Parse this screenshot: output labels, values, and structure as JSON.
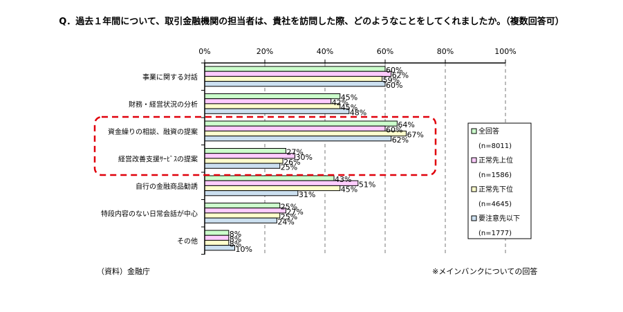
{
  "title": "Q．過去１年間について、取引金融機関の担当者は、貴社を訪問した際、どのようなことをしてくれましたか。（複数回答可）",
  "source": "（資料）金融庁",
  "note": "※メインバンクについての回答",
  "chart_data": {
    "type": "bar",
    "orientation": "horizontal",
    "xlim": [
      0,
      100
    ],
    "ticks": [
      "0%",
      "20%",
      "40%",
      "60%",
      "80%",
      "100%"
    ],
    "grid": true,
    "legend_position": "right",
    "highlight": "red dashed box around 資金繰りの相談、融資の提案 and 経営改善支援ｻｰﾋﾞｽの提案",
    "categories": [
      "事業に関する対話",
      "財務・経営状況の分析",
      "資金繰りの相談、融資の提案",
      "経営改善支援ｻｰﾋﾞｽの提案",
      "自行の金融商品勧誘",
      "特段内容のない日常会話が中心",
      "その他"
    ],
    "series": [
      {
        "name": "全回答",
        "n": "(n=8011)",
        "color": "#ccffcc",
        "values": [
          60,
          45,
          64,
          27,
          43,
          25,
          8
        ],
        "labels": [
          "60%",
          "45%",
          "64%",
          "27%",
          "43%",
          "25%",
          "8%"
        ]
      },
      {
        "name": "正常先上位",
        "n": "(n=1586)",
        "color": "#ffccff",
        "values": [
          62,
          42,
          60,
          30,
          51,
          27,
          8
        ],
        "labels": [
          "62%",
          "42%",
          "60%",
          "30%",
          "51%",
          "27%",
          "8%"
        ]
      },
      {
        "name": "正常先下位",
        "n": "(n=4645)",
        "color": "#ffffcc",
        "values": [
          59,
          45,
          67,
          26,
          45,
          25,
          8
        ],
        "labels": [
          "59%",
          "45%",
          "67%",
          "26%",
          "45%",
          "25%",
          "8%"
        ]
      },
      {
        "name": "要注意先以下",
        "n": "(n=1777)",
        "color": "#cce0f0",
        "values": [
          60,
          48,
          62,
          25,
          31,
          24,
          10
        ],
        "labels": [
          "60%",
          "48%",
          "62%",
          "25%",
          "31%",
          "24%",
          "10%"
        ]
      }
    ]
  }
}
